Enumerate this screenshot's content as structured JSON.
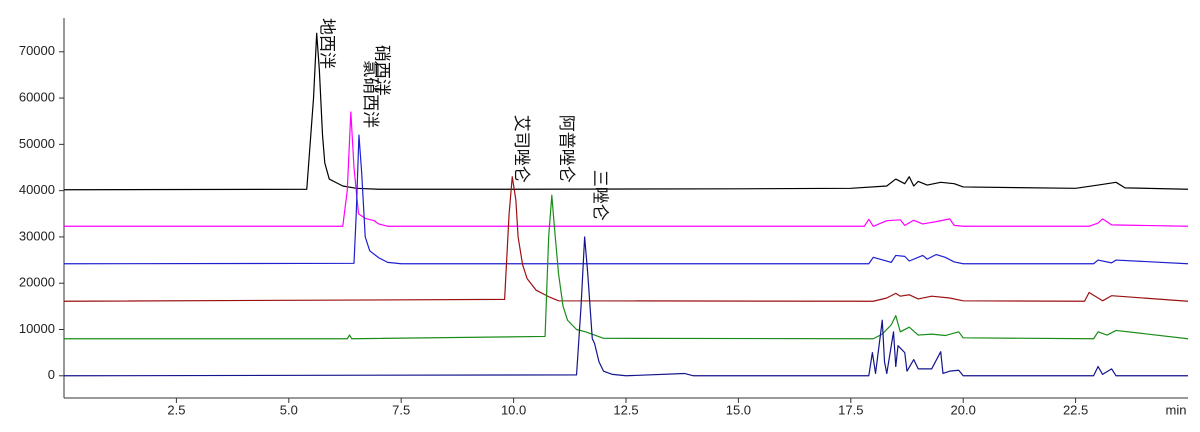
{
  "chart_data": {
    "type": "line",
    "xlabel": "min",
    "xlim": [
      0,
      25
    ],
    "ylim": [
      -4800,
      77300
    ],
    "xticks": [
      2.5,
      {
        "value": 5,
        "label": "5.0"
      },
      7.5,
      {
        "value": 10,
        "label": "10.0"
      },
      12.5,
      {
        "value": 15,
        "label": "15.0"
      },
      17.5,
      {
        "value": 20,
        "label": "20.0"
      },
      22.5
    ],
    "yticks": [
      0,
      10000,
      20000,
      30000,
      40000,
      50000,
      60000,
      70000
    ],
    "series": [
      {
        "color": "#000000",
        "x": [
          0,
          5.4,
          5.55,
          5.62,
          5.68,
          5.75,
          5.8,
          5.9,
          6.0,
          6.2,
          6.5,
          7.0,
          10,
          15,
          17.5,
          18.3,
          18.5,
          18.7,
          18.8,
          18.9,
          19.0,
          19.2,
          19.5,
          19.8,
          20.0,
          22.5,
          23.0,
          23.2,
          23.4,
          23.6,
          25
        ],
        "values": [
          40200,
          40300,
          60000,
          74000,
          66000,
          52000,
          46000,
          42500,
          42000,
          41000,
          40500,
          40300,
          40300,
          40400,
          40500,
          41000,
          42500,
          41500,
          43000,
          41000,
          42000,
          41200,
          41800,
          41500,
          40800,
          40500,
          41200,
          41500,
          41800,
          40600,
          40300
        ]
      },
      {
        "color": "#ff00ff",
        "x": [
          0,
          6.2,
          6.3,
          6.38,
          6.45,
          6.55,
          6.7,
          6.9,
          7.0,
          7.2,
          17.8,
          17.9,
          18.0,
          18.3,
          18.6,
          18.7,
          18.9,
          19.1,
          19.4,
          19.7,
          19.8,
          20.0,
          22.8,
          23.0,
          23.1,
          23.3,
          25
        ],
        "values": [
          32300,
          32300,
          40000,
          57000,
          45000,
          35000,
          34000,
          33500,
          32800,
          32300,
          32300,
          33800,
          32300,
          33500,
          33700,
          32500,
          33600,
          32800,
          33300,
          33900,
          32500,
          32300,
          32300,
          33000,
          33900,
          32600,
          32300
        ]
      },
      {
        "color": "#1f1fd0",
        "x": [
          0,
          6.45,
          6.5,
          6.56,
          6.62,
          6.7,
          6.8,
          7.0,
          7.2,
          7.5,
          17.9,
          18.0,
          18.4,
          18.5,
          18.7,
          18.8,
          19.1,
          19.2,
          19.4,
          19.6,
          19.8,
          20.0,
          22.9,
          23.0,
          23.3,
          23.4,
          25
        ],
        "values": [
          24200,
          24300,
          35000,
          52000,
          44000,
          30000,
          27000,
          25500,
          24500,
          24200,
          24200,
          25600,
          24500,
          26000,
          25800,
          24800,
          26000,
          25200,
          26200,
          25600,
          24600,
          24200,
          24200,
          25000,
          24400,
          25000,
          24200
        ]
      },
      {
        "color": "#9b1111",
        "x": [
          0,
          9.8,
          9.9,
          9.97,
          10.05,
          10.1,
          10.2,
          10.3,
          10.5,
          10.8,
          11.0,
          18.0,
          18.3,
          18.5,
          18.6,
          18.8,
          19.0,
          19.3,
          19.7,
          20.0,
          22.7,
          22.8,
          23.1,
          23.3,
          25
        ],
        "values": [
          16100,
          16500,
          35000,
          43000,
          38000,
          30000,
          24000,
          21000,
          18500,
          17000,
          16200,
          16100,
          16800,
          17800,
          17200,
          17500,
          16600,
          17200,
          16800,
          16200,
          16100,
          18000,
          16200,
          17300,
          16100
        ]
      },
      {
        "color": "#1a8c1a",
        "x": [
          0,
          6.3,
          6.35,
          6.4,
          10.7,
          10.78,
          10.85,
          10.9,
          11.0,
          11.1,
          11.2,
          11.4,
          11.6,
          12.0,
          18.0,
          18.2,
          18.4,
          18.5,
          18.6,
          18.8,
          19.0,
          19.3,
          19.6,
          19.9,
          20.0,
          22.9,
          23.0,
          23.2,
          23.4,
          25
        ],
        "values": [
          8000,
          8000,
          8800,
          8000,
          8500,
          30000,
          39000,
          33000,
          22000,
          15000,
          12000,
          10000,
          9500,
          8100,
          8000,
          9000,
          11000,
          13000,
          9500,
          10500,
          8800,
          9000,
          8700,
          9500,
          8200,
          8000,
          9500,
          8800,
          9800,
          8000
        ]
      },
      {
        "color": "#14148c",
        "x": [
          0,
          11.4,
          11.5,
          11.58,
          11.65,
          11.75,
          11.8,
          11.9,
          12.0,
          12.2,
          12.5,
          13.8,
          14,
          17.9,
          17.98,
          18.05,
          18.2,
          18.25,
          18.3,
          18.45,
          18.5,
          18.55,
          18.7,
          18.75,
          18.9,
          19.0,
          19.3,
          19.5,
          19.55,
          19.7,
          19.9,
          20.0,
          22.9,
          23.0,
          23.1,
          23.3,
          23.4,
          25
        ],
        "values": [
          0,
          200,
          15000,
          30000,
          22000,
          8000,
          7000,
          3000,
          1000,
          300,
          0,
          500,
          0,
          0,
          5000,
          500,
          12000,
          3000,
          500,
          9500,
          2000,
          6500,
          5000,
          1000,
          3500,
          1500,
          1500,
          5200,
          500,
          1000,
          1200,
          0,
          0,
          2000,
          300,
          1500,
          0,
          0
        ]
      }
    ],
    "annotations": [
      {
        "text": "地西泮",
        "x": 5.83,
        "y": 77300
      },
      {
        "text": "硝西泮",
        "x": 7.05,
        "y": 71500
      },
      {
        "text": "氯硝西泮",
        "x": 6.8,
        "y": 68200
      },
      {
        "text": "艾司唑仑",
        "x": 10.15,
        "y": 56400
      },
      {
        "text": "阿普唑仑",
        "x": 11.15,
        "y": 56400
      },
      {
        "text": "三唑仑",
        "x": 11.9,
        "y": 44500
      }
    ]
  }
}
